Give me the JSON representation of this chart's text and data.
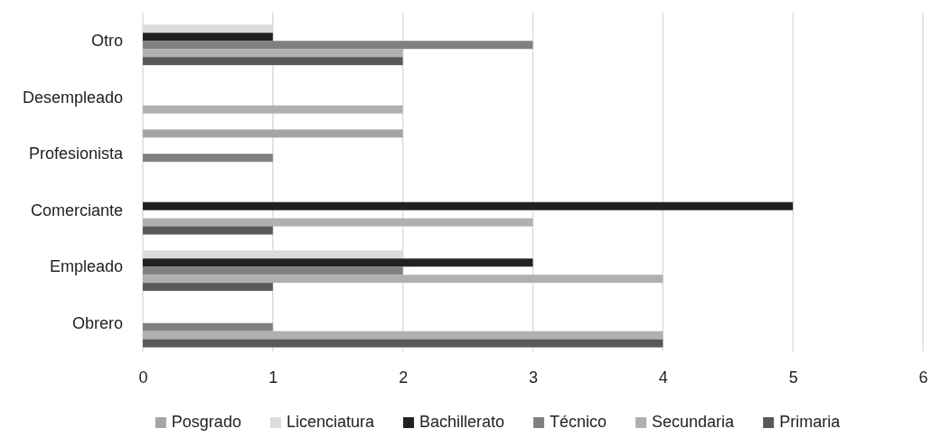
{
  "chart_data": {
    "type": "bar",
    "orientation": "horizontal",
    "categories": [
      "Otro",
      "Desempleado",
      "Profesionista",
      "Comerciante",
      "Empleado",
      "Obrero"
    ],
    "series": [
      {
        "name": "Posgrado",
        "color": "#a5a5a5",
        "values": [
          null,
          null,
          2,
          null,
          null,
          null
        ]
      },
      {
        "name": "Licenciatura",
        "color": "#dcdcdc",
        "values": [
          1,
          null,
          null,
          null,
          2,
          null
        ]
      },
      {
        "name": "Bachillerato",
        "color": "#222222",
        "values": [
          1,
          null,
          null,
          5,
          3,
          null
        ]
      },
      {
        "name": "Técnico",
        "color": "#808080",
        "values": [
          3,
          null,
          1,
          null,
          2,
          1
        ]
      },
      {
        "name": "Secundaria",
        "color": "#b0b0b0",
        "values": [
          2,
          2,
          null,
          3,
          4,
          4
        ]
      },
      {
        "name": "Primaria",
        "color": "#595959",
        "values": [
          2,
          null,
          null,
          1,
          1,
          4
        ]
      }
    ],
    "xlim": [
      0,
      6
    ],
    "xticks": [
      0,
      1,
      2,
      3,
      4,
      5,
      6
    ],
    "grid": "x",
    "legend": "bottom"
  }
}
